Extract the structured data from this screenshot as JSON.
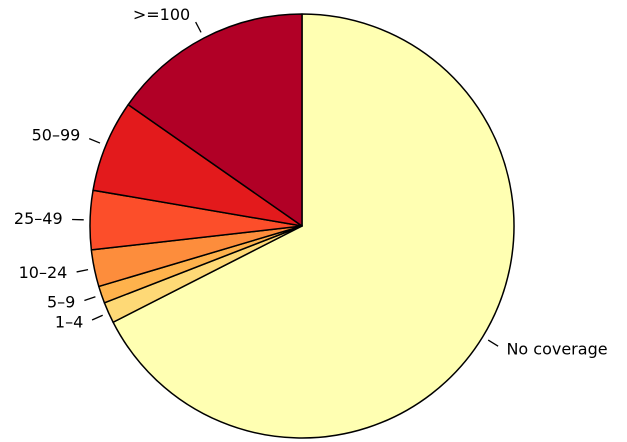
{
  "chart_data": {
    "type": "pie",
    "title": "",
    "legend": "none",
    "start_angle_deg": 90,
    "direction": "clockwise",
    "slices": [
      {
        "label": "No coverage",
        "value": 67.5,
        "color": "#FFFFB2"
      },
      {
        "label": "1–4",
        "value": 1.6,
        "color": "#FED976"
      },
      {
        "label": "5–9",
        "value": 1.3,
        "color": "#FEB24C"
      },
      {
        "label": "10–24",
        "value": 2.8,
        "color": "#FD8D3C"
      },
      {
        "label": "25–49",
        "value": 4.5,
        "color": "#FC4E2A"
      },
      {
        "label": "50–99",
        "value": 7.0,
        "color": "#E31A1C"
      },
      {
        "label": ">=100",
        "value": 15.3,
        "color": "#B10026"
      }
    ]
  }
}
